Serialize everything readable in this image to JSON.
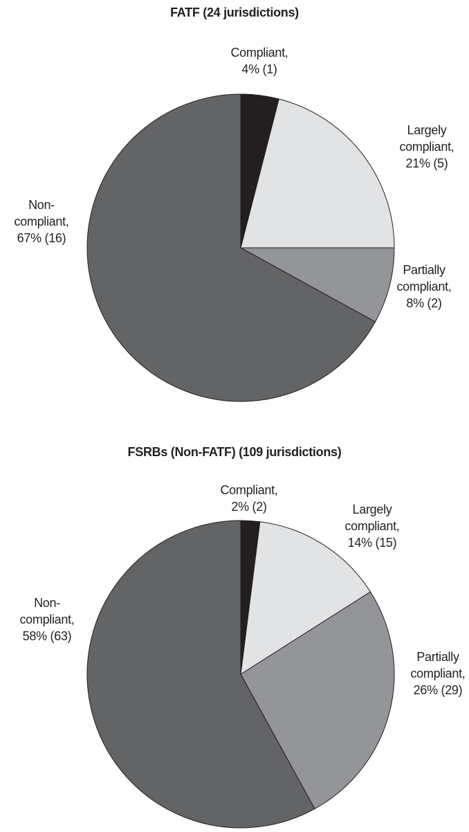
{
  "chart_data": [
    {
      "type": "pie",
      "title": "FATF (24 jurisdictions)",
      "categories": [
        "Compliant,",
        "Largely compliant,",
        "Partially compliant,",
        "Non-compliant,"
      ],
      "values": [
        4,
        21,
        8,
        67
      ],
      "value_labels": [
        "4% (1)",
        "21% (5)",
        "8% (2)",
        "67% (16)"
      ],
      "colors": [
        "#231f20",
        "#e2e3e4",
        "#939598",
        "#636466"
      ]
    },
    {
      "type": "pie",
      "title": "FSRBs (Non-FATF) (109 jurisdictions)",
      "categories": [
        "Compliant,",
        "Largely compliant,",
        "Partially compliant,",
        "Non-compliant,"
      ],
      "values": [
        2,
        14,
        26,
        58
      ],
      "value_labels": [
        "2% (2)",
        "14% (15)",
        "26% (29)",
        "58% (63)"
      ],
      "colors": [
        "#231f20",
        "#e2e3e4",
        "#939598",
        "#636466"
      ]
    }
  ]
}
